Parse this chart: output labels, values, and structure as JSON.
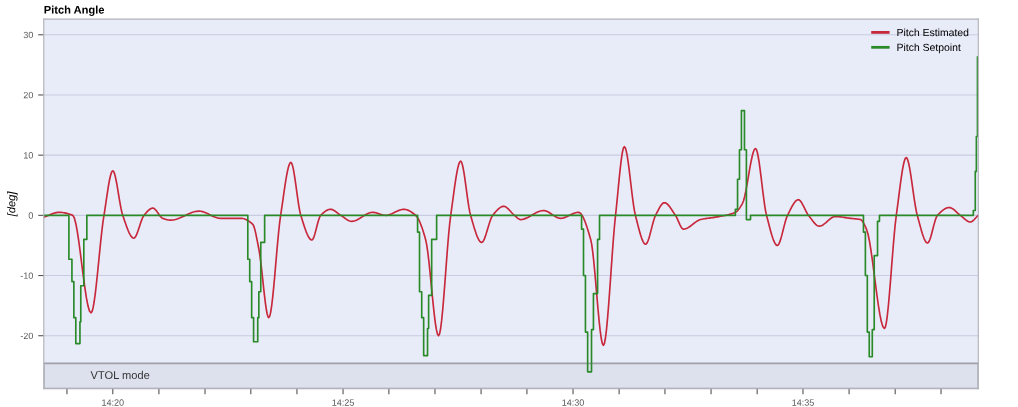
{
  "chart_data": {
    "type": "line",
    "title": "Pitch Angle",
    "ylabel": "[deg]",
    "xlim": [
      14.3083,
      14.6468
    ],
    "ylim": [
      -28.8,
      32.6
    ],
    "yticks": [
      -20,
      -10,
      0,
      10,
      20,
      30
    ],
    "xticks": [
      {
        "value": 14.3167,
        "label": null
      },
      {
        "value": 14.3333,
        "label": "14:20"
      },
      {
        "value": 14.35,
        "label": null
      },
      {
        "value": 14.3667,
        "label": null
      },
      {
        "value": 14.3833,
        "label": null
      },
      {
        "value": 14.4,
        "label": null
      },
      {
        "value": 14.4167,
        "label": "14:25"
      },
      {
        "value": 14.4333,
        "label": null
      },
      {
        "value": 14.45,
        "label": null
      },
      {
        "value": 14.4667,
        "label": null
      },
      {
        "value": 14.4833,
        "label": null
      },
      {
        "value": 14.5,
        "label": "14:30"
      },
      {
        "value": 14.5167,
        "label": null
      },
      {
        "value": 14.5333,
        "label": null
      },
      {
        "value": 14.55,
        "label": null
      },
      {
        "value": 14.5667,
        "label": null
      },
      {
        "value": 14.5833,
        "label": "14:35"
      },
      {
        "value": 14.6,
        "label": null
      },
      {
        "value": 14.6167,
        "label": null
      },
      {
        "value": 14.6333,
        "label": null
      }
    ],
    "grid": "y",
    "legend": "top right",
    "marker": "none",
    "line_style": "solid",
    "bands": [
      {
        "axis": "y",
        "from": -28.8,
        "to": -24.6,
        "label": "VTOL mode",
        "color": "#dde1ee"
      }
    ],
    "series": [
      {
        "name": "Pitch Estimated",
        "color": "#c8283c",
        "x": [
          14.3083,
          14.3138,
          14.3188,
          14.3254,
          14.3301,
          14.3333,
          14.3369,
          14.3409,
          14.3446,
          14.3478,
          14.3514,
          14.3543,
          14.3645,
          14.3724,
          14.3797,
          14.384,
          14.3862,
          14.3898,
          14.3941,
          14.3978,
          14.4014,
          14.4054,
          14.4086,
          14.4122,
          14.4159,
          14.4198,
          14.4274,
          14.4322,
          14.4387,
          14.443,
          14.4466,
          14.4513,
          14.4557,
          14.4593,
          14.4629,
          14.4669,
          14.4709,
          14.4749,
          14.4788,
          14.481,
          14.4893,
          14.4955,
          14.502,
          14.5064,
          14.511,
          14.5154,
          14.5186,
          14.5226,
          14.5263,
          14.5299,
          14.5331,
          14.5371,
          14.54,
          14.5462,
          14.5516,
          14.5588,
          14.5614,
          14.5661,
          14.5701,
          14.574,
          14.5777,
          14.5816,
          14.5853,
          14.5892,
          14.595,
          14.6005,
          14.6041,
          14.6063,
          14.6128,
          14.6171,
          14.6207,
          14.6247,
          14.6284,
          14.632,
          14.6363,
          14.6403,
          14.6439,
          14.6468
        ],
        "values": [
          -0.3,
          0.5,
          0,
          -16.2,
          0,
          7.4,
          0,
          -3.8,
          0,
          1.2,
          -0.5,
          -0.8,
          0.7,
          -0.5,
          -0.5,
          -1.5,
          -5.6,
          -17,
          0,
          8.8,
          0,
          -4.1,
          0,
          1,
          0,
          -1,
          0.5,
          0,
          1,
          0,
          -4,
          -20,
          0,
          9,
          0,
          -4.5,
          0,
          1.5,
          0,
          -0.7,
          0.8,
          -0.5,
          0.5,
          -4,
          -21.6,
          0,
          11.4,
          0,
          -4.8,
          0,
          2.1,
          0,
          -2.3,
          -0.7,
          -0.3,
          0.5,
          2,
          11.1,
          0,
          -5,
          0,
          2.6,
          0,
          -1.8,
          -0.2,
          -0.5,
          -0.7,
          -2.3,
          -18.8,
          0,
          9.6,
          0,
          -4.6,
          0,
          1.3,
          0,
          -1.1,
          0
        ]
      },
      {
        "name": "Pitch Setpoint",
        "color": "#2a8a2a",
        "type": "step",
        "x": [
          14.3083,
          14.3174,
          14.3185,
          14.3192,
          14.3199,
          14.3214,
          14.3217,
          14.3228,
          14.3239,
          14.3822,
          14.3829,
          14.3836,
          14.3843,
          14.3858,
          14.3862,
          14.3869,
          14.3883,
          14.4437,
          14.4444,
          14.4452,
          14.4459,
          14.4473,
          14.4477,
          14.4488,
          14.4506,
          14.5031,
          14.5038,
          14.5045,
          14.5053,
          14.5067,
          14.5074,
          14.5089,
          14.5096,
          14.5588,
          14.5596,
          14.5603,
          14.561,
          14.5621,
          14.5628,
          14.5643,
          14.6052,
          14.6059,
          14.6066,
          14.6073,
          14.6084,
          14.6091,
          14.6103,
          14.611,
          14.645,
          14.6457,
          14.6461,
          14.6465
        ],
        "values": [
          0,
          -7.3,
          -11,
          -17,
          -21.3,
          -17.7,
          -11.7,
          -4,
          0,
          -7.3,
          -11,
          -17,
          -21,
          -17,
          -12.7,
          -4.5,
          0,
          -2.8,
          -12.7,
          -17,
          -23.3,
          -18.8,
          -13.3,
          -4,
          0,
          -2.3,
          -10,
          -19.4,
          -26,
          -19,
          -13,
          -4,
          0,
          1,
          6,
          10.9,
          17.4,
          10.9,
          -0.7,
          0,
          -2.8,
          -10,
          -19.4,
          -23.5,
          -19,
          -6.7,
          -1,
          0,
          0.8,
          7.3,
          13.1,
          26.3
        ]
      }
    ]
  }
}
